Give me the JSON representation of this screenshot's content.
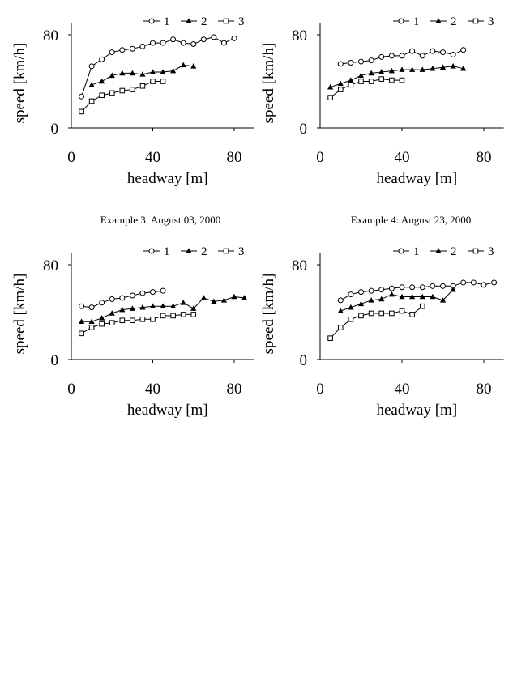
{
  "captions": [
    "Example 3: August 03, 2000",
    "Example 4: August 23, 2000"
  ],
  "chart_data": [
    {
      "type": "line",
      "xlabel": "headway [m]",
      "ylabel": "speed [km/h]",
      "xlim": [
        0,
        85
      ],
      "ylim": [
        0,
        80
      ],
      "xticks": [
        "0",
        "40",
        "80"
      ],
      "yticks": [
        "0",
        "80"
      ],
      "legend_position": "top-right",
      "series": [
        {
          "name": "1",
          "marker": "circle-open",
          "x": [
            5,
            10,
            15,
            20,
            25,
            30,
            35,
            40,
            45,
            50,
            55,
            60,
            65,
            70,
            75,
            80
          ],
          "y": [
            27,
            53,
            59,
            65,
            67,
            68,
            70,
            73,
            73,
            76,
            73,
            72,
            76,
            78,
            73,
            77
          ]
        },
        {
          "name": "2",
          "marker": "triangle-filled",
          "x": [
            10,
            15,
            20,
            25,
            30,
            35,
            40,
            45,
            50,
            55,
            60
          ],
          "y": [
            37,
            40,
            45,
            47,
            47,
            46,
            48,
            48,
            49,
            54,
            53
          ]
        },
        {
          "name": "3",
          "marker": "square-open",
          "x": [
            5,
            10,
            15,
            20,
            25,
            30,
            35,
            40,
            45
          ],
          "y": [
            14,
            23,
            28,
            30,
            32,
            33,
            36,
            40,
            40
          ]
        }
      ]
    },
    {
      "type": "line",
      "xlabel": "headway [m]",
      "ylabel": "speed [km/h]",
      "xlim": [
        0,
        85
      ],
      "ylim": [
        0,
        80
      ],
      "xticks": [
        "0",
        "40",
        "80"
      ],
      "yticks": [
        "0",
        "80"
      ],
      "legend_position": "top-right",
      "series": [
        {
          "name": "1",
          "marker": "circle-open",
          "x": [
            10,
            15,
            20,
            25,
            30,
            35,
            40,
            45,
            50,
            55,
            60,
            65,
            70
          ],
          "y": [
            55,
            56,
            57,
            58,
            61,
            62,
            62,
            66,
            62,
            66,
            65,
            63,
            67
          ]
        },
        {
          "name": "2",
          "marker": "triangle-filled",
          "x": [
            5,
            10,
            15,
            20,
            25,
            30,
            35,
            40,
            45,
            50,
            55,
            60,
            65,
            70
          ],
          "y": [
            35,
            38,
            41,
            45,
            47,
            48,
            49,
            50,
            50,
            50,
            51,
            52,
            53,
            51
          ]
        },
        {
          "name": "3",
          "marker": "square-open",
          "x": [
            5,
            10,
            15,
            20,
            25,
            30,
            35,
            40
          ],
          "y": [
            26,
            33,
            37,
            40,
            40,
            42,
            41,
            41
          ]
        }
      ]
    },
    {
      "type": "line",
      "xlabel": "headway [m]",
      "ylabel": "speed [km/h]",
      "xlim": [
        0,
        85
      ],
      "ylim": [
        0,
        80
      ],
      "xticks": [
        "0",
        "40",
        "80"
      ],
      "yticks": [
        "0",
        "80"
      ],
      "legend_position": "top-right",
      "series": [
        {
          "name": "1",
          "marker": "circle-open",
          "x": [
            5,
            10,
            15,
            20,
            25,
            30,
            35,
            40,
            45
          ],
          "y": [
            45,
            44,
            48,
            51,
            52,
            54,
            56,
            57,
            58
          ]
        },
        {
          "name": "2",
          "marker": "triangle-filled",
          "x": [
            5,
            10,
            15,
            20,
            25,
            30,
            35,
            40,
            45,
            50,
            55,
            60,
            65,
            70,
            75,
            80,
            85
          ],
          "y": [
            32,
            32,
            35,
            39,
            42,
            43,
            44,
            45,
            45,
            45,
            48,
            43,
            52,
            49,
            50,
            53,
            52
          ]
        },
        {
          "name": "3",
          "marker": "square-open",
          "x": [
            5,
            10,
            15,
            20,
            25,
            30,
            35,
            40,
            45,
            50,
            55,
            60
          ],
          "y": [
            22,
            27,
            30,
            31,
            33,
            33,
            34,
            34,
            37,
            37,
            38,
            38
          ]
        }
      ]
    },
    {
      "type": "line",
      "xlabel": "headway [m]",
      "ylabel": "speed [km/h]",
      "xlim": [
        0,
        85
      ],
      "ylim": [
        0,
        80
      ],
      "xticks": [
        "0",
        "40",
        "80"
      ],
      "yticks": [
        "0",
        "80"
      ],
      "legend_position": "top-right",
      "series": [
        {
          "name": "1",
          "marker": "circle-open",
          "x": [
            10,
            15,
            20,
            25,
            30,
            35,
            40,
            45,
            50,
            55,
            60,
            65,
            70,
            75,
            80,
            85
          ],
          "y": [
            50,
            55,
            57,
            58,
            59,
            60,
            61,
            61,
            61,
            62,
            62,
            62,
            65,
            65,
            63,
            65
          ]
        },
        {
          "name": "2",
          "marker": "triangle-filled",
          "x": [
            10,
            15,
            20,
            25,
            30,
            35,
            40,
            45,
            50,
            55,
            60,
            65
          ],
          "y": [
            41,
            44,
            47,
            50,
            51,
            55,
            53,
            53,
            53,
            53,
            50,
            59
          ]
        },
        {
          "name": "3",
          "marker": "square-open",
          "x": [
            5,
            10,
            15,
            20,
            25,
            30,
            35,
            40,
            45,
            50
          ],
          "y": [
            18,
            27,
            34,
            37,
            39,
            39,
            39,
            41,
            38,
            45
          ]
        }
      ]
    }
  ]
}
